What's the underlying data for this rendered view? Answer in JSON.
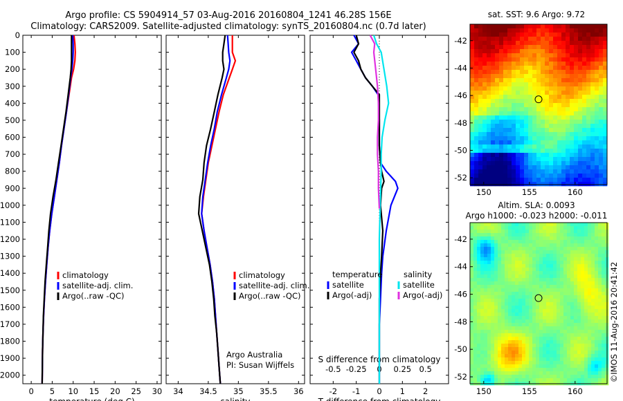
{
  "title": {
    "line1": "Argo profile: CS 5904914_57 03-Aug-2016 20160804_1241 46.28S 156E",
    "line2": "Climatology: CARS2009. Satellite-adjusted climatology: synTS_20160804.nc (0.7d later)"
  },
  "colors": {
    "climatology": "#ff0000",
    "satellite": "#0000ff",
    "argo": "#000000",
    "satellite_salinity": "#00e5ee",
    "argo_salinity": "#e030e0"
  },
  "chart_data": [
    {
      "type": "line",
      "name": "temperature-profile",
      "xlabel": "temperature (deg C)",
      "ylabel": "",
      "xlim": [
        -2,
        31
      ],
      "ylim": [
        2050,
        0
      ],
      "xticks": [
        "0",
        "5",
        "10",
        "15",
        "20",
        "25",
        "30"
      ],
      "xtick_values": [
        0,
        5,
        10,
        15,
        20,
        25,
        30
      ],
      "yticks": [
        "0",
        "100",
        "200",
        "300",
        "400",
        "500",
        "600",
        "700",
        "800",
        "900",
        "1000",
        "1100",
        "1200",
        "1300",
        "1400",
        "1500",
        "1600",
        "1700",
        "1800",
        "1900",
        "2000"
      ],
      "ytick_values": [
        0,
        100,
        200,
        300,
        400,
        500,
        600,
        700,
        800,
        900,
        1000,
        1100,
        1200,
        1300,
        1400,
        1500,
        1600,
        1700,
        1800,
        1900,
        2000
      ],
      "legend": [
        "climatology",
        "satellite-adj. clim.",
        "Argo(..raw -QC)"
      ],
      "legend_position": "lower-right",
      "series": [
        {
          "name": "climatology",
          "color": "#ff0000",
          "x": [
            10.2,
            10.4,
            10.5,
            10.4,
            10.1,
            9.6,
            9.0,
            8.4,
            7.8,
            7.2,
            6.7,
            6.1,
            5.5,
            4.9,
            4.4,
            4.0,
            3.7,
            3.4,
            3.15,
            2.95,
            2.8,
            2.7,
            2.6
          ],
          "y": [
            0,
            50,
            100,
            150,
            200,
            250,
            350,
            450,
            550,
            650,
            750,
            850,
            950,
            1050,
            1150,
            1250,
            1350,
            1450,
            1550,
            1650,
            1750,
            1850,
            2050
          ]
        },
        {
          "name": "satellite-adj. clim.",
          "color": "#0000ff",
          "x": [
            9.9,
            10.0,
            10.0,
            9.9,
            9.7,
            9.4,
            8.9,
            8.4,
            7.8,
            7.2,
            6.7,
            6.1,
            5.5,
            4.9,
            4.4,
            4.0,
            3.7,
            3.4,
            3.15,
            2.95,
            2.8,
            2.7,
            2.6
          ],
          "y": [
            0,
            50,
            100,
            150,
            200,
            250,
            350,
            450,
            550,
            650,
            750,
            850,
            950,
            1050,
            1150,
            1250,
            1350,
            1450,
            1550,
            1650,
            1750,
            1850,
            2050
          ]
        },
        {
          "name": "Argo(..raw -QC)",
          "color": "#000000",
          "x": [
            9.6,
            9.6,
            9.6,
            9.6,
            9.5,
            9.3,
            8.8,
            8.3,
            7.7,
            7.1,
            6.5,
            5.9,
            5.2,
            4.6,
            4.2,
            3.9,
            3.6,
            3.3,
            3.1,
            2.9,
            2.8,
            2.7,
            2.6
          ],
          "y": [
            0,
            50,
            100,
            150,
            200,
            250,
            350,
            450,
            550,
            650,
            750,
            850,
            950,
            1050,
            1150,
            1250,
            1350,
            1450,
            1550,
            1650,
            1750,
            1850,
            2050
          ]
        }
      ]
    },
    {
      "type": "line",
      "name": "salinity-profile",
      "xlabel": "salinity",
      "ylabel": "",
      "xlim": [
        33.8,
        36.1
      ],
      "ylim": [
        2050,
        0
      ],
      "xticks": [
        "34",
        "34.5",
        "35",
        "35.5",
        "36"
      ],
      "xtick_values": [
        34,
        34.5,
        35,
        35.5,
        36
      ],
      "legend": [
        "climatology",
        "satellite-adj. clim.",
        "Argo(..raw -QC)"
      ],
      "legend_position": "lower-right",
      "annotation": [
        "Argo Australia",
        "PI: Susan Wijffels"
      ],
      "series": [
        {
          "name": "climatology",
          "color": "#ff0000",
          "x": [
            34.9,
            34.9,
            34.9,
            34.95,
            34.9,
            34.85,
            34.75,
            34.68,
            34.62,
            34.56,
            34.5,
            34.46,
            34.42,
            34.39,
            34.43,
            34.48,
            34.53,
            34.57,
            34.6,
            34.62,
            34.64,
            34.66,
            34.68,
            34.7
          ],
          "y": [
            0,
            50,
            100,
            150,
            200,
            250,
            350,
            450,
            550,
            650,
            750,
            850,
            950,
            1050,
            1150,
            1250,
            1350,
            1450,
            1550,
            1650,
            1750,
            1850,
            1950,
            2050
          ]
        },
        {
          "name": "satellite-adj. clim.",
          "color": "#0000ff",
          "x": [
            34.82,
            34.83,
            34.84,
            34.86,
            34.84,
            34.8,
            34.72,
            34.65,
            34.6,
            34.54,
            34.49,
            34.45,
            34.41,
            34.39,
            34.43,
            34.48,
            34.53,
            34.57,
            34.6,
            34.62,
            34.64,
            34.66,
            34.68,
            34.7
          ],
          "y": [
            0,
            50,
            100,
            150,
            200,
            250,
            350,
            450,
            550,
            650,
            750,
            850,
            950,
            1050,
            1150,
            1250,
            1350,
            1450,
            1550,
            1650,
            1750,
            1850,
            1950,
            2050
          ]
        },
        {
          "name": "Argo(..raw -QC)",
          "color": "#000000",
          "x": [
            34.78,
            34.76,
            34.74,
            34.74,
            34.76,
            34.73,
            34.66,
            34.6,
            34.54,
            34.47,
            34.43,
            34.41,
            34.36,
            34.34,
            34.4,
            34.46,
            34.52,
            34.56,
            34.59,
            34.61,
            34.64,
            34.66,
            34.68,
            34.7
          ],
          "y": [
            0,
            50,
            100,
            150,
            200,
            250,
            350,
            450,
            550,
            650,
            750,
            850,
            950,
            1050,
            1150,
            1250,
            1350,
            1450,
            1550,
            1650,
            1750,
            1850,
            1950,
            2050
          ]
        }
      ]
    },
    {
      "type": "line",
      "name": "difference-profile",
      "xlabel": "T difference from climatology",
      "xlabel_top": "S difference from climatology",
      "ylabel": "",
      "xlim": [
        -3,
        3
      ],
      "ylim": [
        2050,
        0
      ],
      "xticks": [
        "-2",
        "-1",
        "0",
        "1",
        "2"
      ],
      "xtick_values": [
        -2,
        -1,
        0,
        1,
        2
      ],
      "xticks_top": [
        "-0.5",
        "-0.25",
        "0",
        "0.25",
        "0.5"
      ],
      "xtick_top_values": [
        -0.5,
        -0.25,
        0,
        0.25,
        0.5
      ],
      "legend_temperature": {
        "title": "temperature",
        "items": [
          "satellite",
          "Argo(-adj)"
        ]
      },
      "legend_salinity": {
        "title": "salinity",
        "items": [
          "satellite",
          "Argo(-adj)"
        ]
      },
      "series": [
        {
          "name": "temperature satellite",
          "color": "#0000ff",
          "x": [
            -1.1,
            -0.9,
            -1.2,
            -1.0,
            -0.8,
            -0.6,
            -0.3,
            -0.05,
            0.0,
            0.0,
            0.05,
            0.3,
            0.7,
            0.8,
            0.5,
            0.3,
            0.15,
            0.1,
            0.05,
            0.0,
            0.0,
            0.0
          ],
          "y": [
            0,
            50,
            100,
            150,
            200,
            250,
            300,
            350,
            500,
            650,
            750,
            800,
            860,
            900,
            1000,
            1150,
            1300,
            1400,
            1550,
            1700,
            1850,
            2050
          ]
        },
        {
          "name": "temperature Argo(-adj)",
          "color": "#000000",
          "x": [
            -1.0,
            -0.9,
            -1.1,
            -0.9,
            -0.8,
            -0.6,
            -0.3,
            0.0,
            0.0,
            0.0,
            0.05,
            0.1,
            0.2,
            0.1,
            0.05,
            0.15,
            0.1,
            0.05,
            0.0,
            0.0,
            0.0,
            0.0
          ],
          "y": [
            0,
            50,
            100,
            150,
            200,
            250,
            300,
            350,
            500,
            650,
            750,
            800,
            860,
            900,
            1000,
            1150,
            1300,
            1400,
            1550,
            1700,
            1850,
            2050
          ]
        },
        {
          "name": "salinity satellite",
          "color": "#00e5ee",
          "x": [
            -0.06,
            -0.03,
            0.02,
            0.05,
            0.08,
            0.1,
            0.06,
            0.03,
            0.02,
            0.02,
            0.01,
            0.0,
            0.0,
            0.0,
            0.0,
            0.0
          ],
          "y": [
            0,
            50,
            100,
            200,
            300,
            400,
            500,
            600,
            700,
            800,
            1000,
            1200,
            1400,
            1600,
            1800,
            2050
          ]
        },
        {
          "name": "salinity Argo(-adj)",
          "color": "#e030e0",
          "x": [
            -0.1,
            -0.05,
            -0.06,
            -0.04,
            -0.02,
            -0.01,
            -0.01,
            -0.02,
            -0.02,
            -0.01,
            -0.01,
            0.0
          ],
          "y": [
            0,
            50,
            100,
            200,
            300,
            400,
            500,
            600,
            700,
            800,
            900,
            1020
          ]
        }
      ]
    },
    {
      "type": "heatmap",
      "name": "sst-map",
      "title": "sat. SST: 9.6 Argo: 9.72",
      "xticks": [
        "150",
        "155",
        "160"
      ],
      "xtick_values": [
        150,
        155,
        160
      ],
      "yticks": [
        "-42",
        "-44",
        "-46",
        "-48",
        "-50",
        "-52"
      ],
      "ytick_values": [
        -42,
        -44,
        -46,
        -48,
        -50,
        -52
      ],
      "xlim": [
        148.5,
        163.5
      ],
      "ylim": [
        -52.5,
        -40.8
      ],
      "marker": {
        "lon": 156.0,
        "lat": -46.28
      }
    },
    {
      "type": "heatmap",
      "name": "sla-map",
      "title_lines": [
        "Altim. SLA: 0.0093",
        "Argo h1000: -0.023 h2000: -0.011"
      ],
      "xticks": [
        "150",
        "155",
        "160"
      ],
      "xtick_values": [
        150,
        155,
        160
      ],
      "yticks": [
        "-42",
        "-44",
        "-46",
        "-48",
        "-50",
        "-52"
      ],
      "ytick_values": [
        -42,
        -44,
        -46,
        -48,
        -50,
        -52
      ],
      "xlim": [
        148.5,
        163.5
      ],
      "ylim": [
        -52.5,
        -40.8
      ],
      "marker": {
        "lon": 156.0,
        "lat": -46.28
      }
    }
  ],
  "credit": "©IMOS 11-Aug-2016 20:41:42"
}
